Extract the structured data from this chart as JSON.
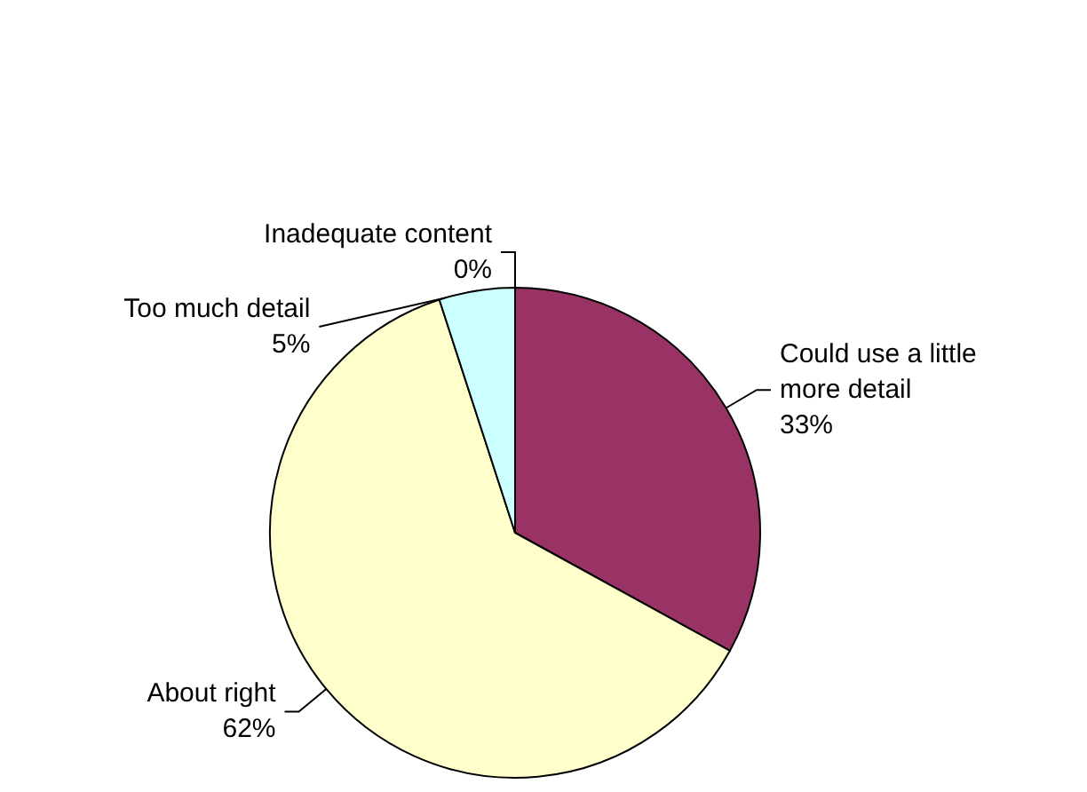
{
  "chart_data": {
    "type": "pie",
    "categories": [
      "Inadequate content",
      "Could use a little more detail",
      "About right",
      "Too much detail"
    ],
    "values": [
      0,
      33,
      62,
      5
    ],
    "value_labels": [
      "0%",
      "33%",
      "62%",
      "5%"
    ],
    "colors": [
      "#9999ff",
      "#993366",
      "#ffffcc",
      "#ccffff"
    ],
    "legend": false
  }
}
